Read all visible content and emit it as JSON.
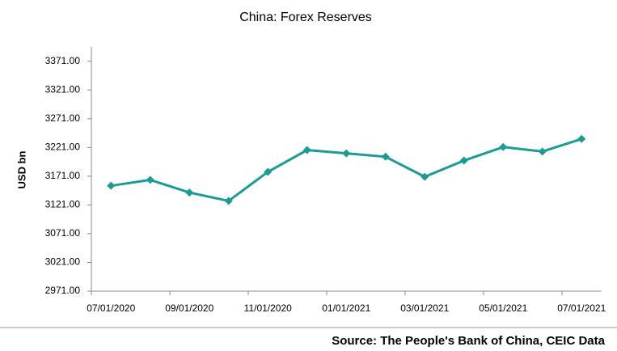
{
  "chart_data": {
    "type": "line",
    "title": "China: Forex Reserves",
    "y_label": "USD bn",
    "source": "Source: The People's Bank of China, CEIC Data",
    "categories": [
      "07/01/2020",
      null,
      "09/01/2020",
      null,
      "11/01/2020",
      null,
      "01/01/2021",
      null,
      "03/01/2021",
      null,
      "05/01/2021",
      null,
      "07/01/2021"
    ],
    "series": [
      {
        "name": "Forex Reserves",
        "color": "#1a9c94",
        "values": [
          3154.4,
          3164.6,
          3142.6,
          3128.0,
          3178.5,
          3216.5,
          3210.7,
          3204.9,
          3170.0,
          3198.2,
          3221.8,
          3214.0,
          3235.9
        ]
      }
    ],
    "ylim": [
      2971,
      3396
    ],
    "yticks": [
      {
        "value": 2971,
        "label": "2971.00"
      },
      {
        "value": 3021,
        "label": "3021.00"
      },
      {
        "value": 3071,
        "label": "3071.00"
      },
      {
        "value": 3121,
        "label": "3121.00"
      },
      {
        "value": 3171,
        "label": "3171.00"
      },
      {
        "value": 3221,
        "label": "3221.00"
      },
      {
        "value": 3271,
        "label": "3271.00"
      },
      {
        "value": 3321,
        "label": "3321.00"
      },
      {
        "value": 3371,
        "label": "3371.00"
      }
    ],
    "grid": false
  }
}
